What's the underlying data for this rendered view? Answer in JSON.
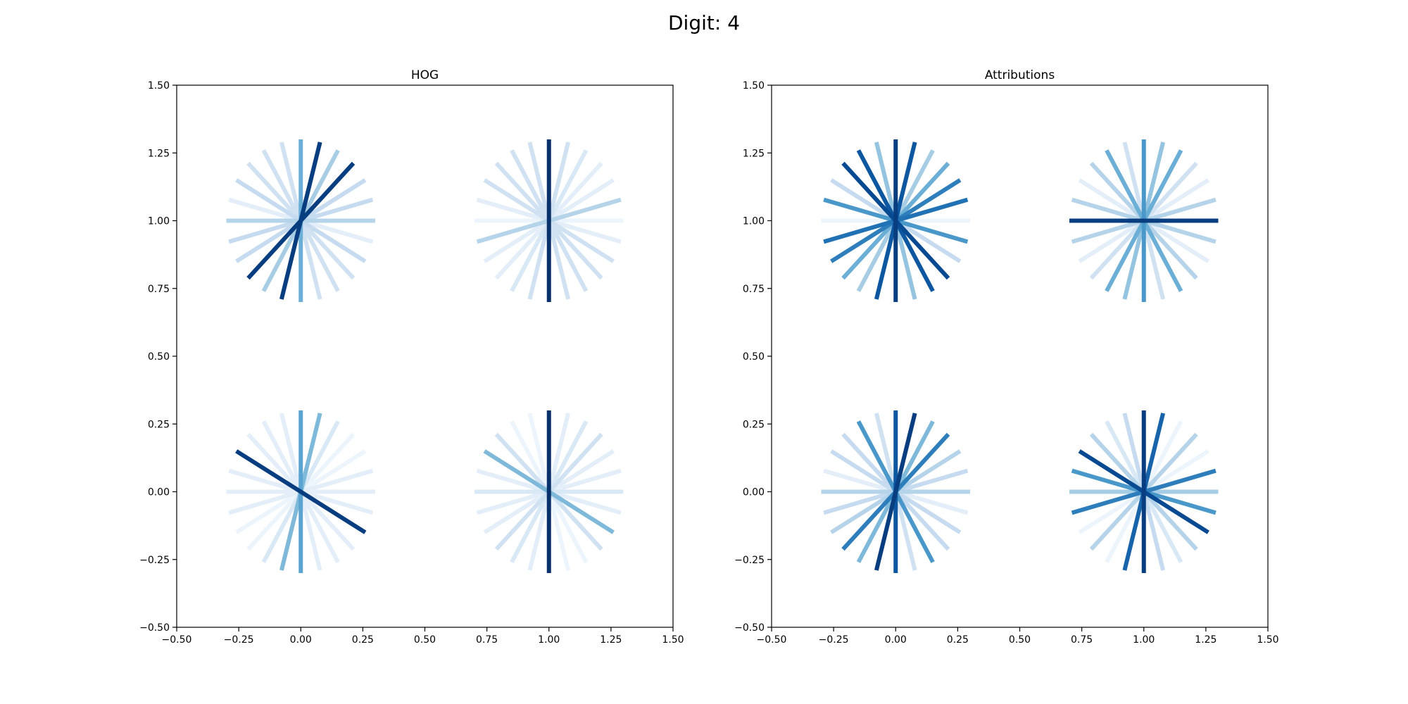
{
  "figure": {
    "suptitle": "Digit: 4"
  },
  "chart_data": [
    {
      "type": "line",
      "title": "HOG",
      "xlabel": "",
      "ylabel": "",
      "xlim": [
        -0.5,
        1.5
      ],
      "ylim": [
        -0.5,
        1.5
      ],
      "xticks": [
        "−0.50",
        "−0.25",
        "0.00",
        "0.25",
        "0.50",
        "0.75",
        "1.00",
        "1.25",
        "1.50"
      ],
      "yticks": [
        "−0.50",
        "−0.25",
        "0.00",
        "0.25",
        "0.50",
        "0.75",
        "1.00",
        "1.25",
        "1.50"
      ],
      "xtick_values": [
        -0.5,
        -0.25,
        0,
        0.25,
        0.5,
        0.75,
        1,
        1.25,
        1.5
      ],
      "ytick_values": [
        -0.5,
        -0.25,
        0,
        0.25,
        0.5,
        0.75,
        1,
        1.25,
        1.5
      ],
      "grid": false,
      "colormap": "Blues",
      "spoke_length": 0.3,
      "spokes_per_cell": 12,
      "cells": [
        {
          "center": [
            0,
            1
          ],
          "intensities": [
            0.5,
            0.95,
            0.35,
            0.95,
            0.25,
            0.25,
            0.3,
            0.1,
            0.25,
            0.2,
            0.2,
            0.2
          ]
        },
        {
          "center": [
            1,
            1
          ],
          "intensities": [
            1.0,
            0.2,
            0.15,
            0.1,
            0.1,
            0.3,
            0.05,
            0.1,
            0.2,
            0.2,
            0.2,
            0.2
          ]
        },
        {
          "center": [
            0,
            0
          ],
          "intensities": [
            0.55,
            0.45,
            0.15,
            0.05,
            0.05,
            0.1,
            0.1,
            0.1,
            0.95,
            0.1,
            0.1,
            0.1
          ]
        },
        {
          "center": [
            1,
            0
          ],
          "intensities": [
            1.0,
            0.1,
            0.15,
            0.2,
            0.1,
            0.1,
            0.15,
            0.1,
            0.45,
            0.2,
            0.05,
            0.05
          ]
        }
      ]
    },
    {
      "type": "line",
      "title": "Attributions",
      "xlabel": "",
      "ylabel": "",
      "xlim": [
        -0.5,
        1.5
      ],
      "ylim": [
        -0.5,
        1.5
      ],
      "xticks": [
        "−0.50",
        "−0.25",
        "0.00",
        "0.25",
        "0.50",
        "0.75",
        "1.00",
        "1.25",
        "1.50"
      ],
      "yticks": [
        "−0.50",
        "−0.25",
        "0.00",
        "0.25",
        "0.50",
        "0.75",
        "1.00",
        "1.25",
        "1.50"
      ],
      "xtick_values": [
        -0.5,
        -0.25,
        0,
        0.25,
        0.5,
        0.75,
        1,
        1.25,
        1.5
      ],
      "ytick_values": [
        -0.5,
        -0.25,
        0,
        0.25,
        0.5,
        0.75,
        1,
        1.25,
        1.5
      ],
      "grid": false,
      "colormap": "Blues",
      "spoke_length": 0.3,
      "spokes_per_cell": 12,
      "cells": [
        {
          "center": [
            0,
            1
          ],
          "intensities": [
            0.95,
            0.85,
            0.35,
            0.5,
            0.7,
            0.75,
            0.05,
            0.6,
            0.25,
            0.9,
            0.85,
            0.4
          ]
        },
        {
          "center": [
            1,
            1
          ],
          "intensities": [
            0.6,
            0.4,
            0.5,
            0.2,
            0.1,
            0.3,
            0.95,
            0.3,
            0.1,
            0.3,
            0.5,
            0.2
          ]
        },
        {
          "center": [
            0,
            0
          ],
          "intensities": [
            0.85,
            0.95,
            0.45,
            0.7,
            0.3,
            0.25,
            0.3,
            0.1,
            0.25,
            0.25,
            0.6,
            0.2
          ]
        },
        {
          "center": [
            1,
            0
          ],
          "intensities": [
            0.95,
            0.8,
            0.05,
            0.3,
            0.05,
            0.7,
            0.35,
            0.6,
            0.9,
            0.3,
            0.15,
            0.25
          ]
        }
      ]
    }
  ]
}
